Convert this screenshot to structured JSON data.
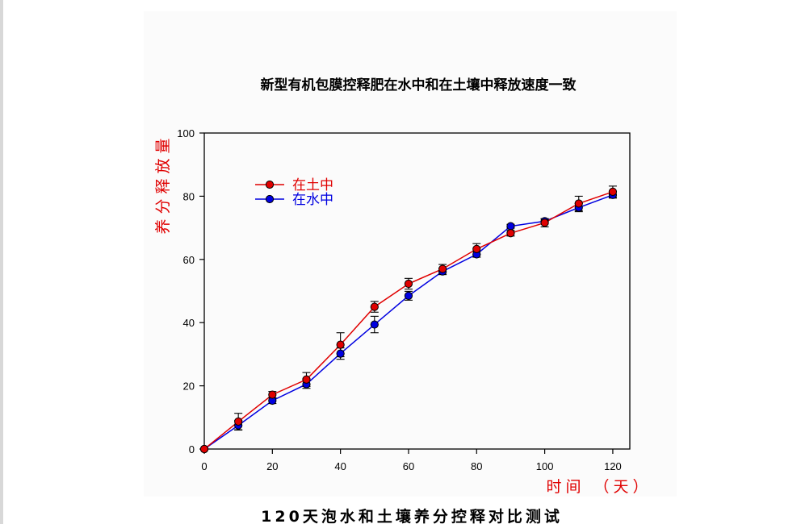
{
  "chart_data": {
    "type": "line",
    "title": "新型有机包膜控释肥在水中和在土壤中释放速度一致",
    "xlabel": "时间 （天）",
    "ylabel": "养分释放量",
    "xlim": [
      0,
      125
    ],
    "ylim": [
      0,
      100
    ],
    "xticks": [
      0,
      20,
      40,
      60,
      80,
      100,
      120
    ],
    "yticks": [
      0,
      20,
      40,
      60,
      80,
      100
    ],
    "grid": false,
    "legend_position": "top-left",
    "label_color": "#e00000",
    "x": [
      0,
      10,
      20,
      30,
      40,
      50,
      60,
      70,
      80,
      90,
      100,
      110,
      120
    ],
    "series": [
      {
        "name": "在土中",
        "color": "#e00000",
        "marker_color": "#e00000",
        "values": [
          0,
          8.7,
          17.2,
          22.0,
          33.0,
          45.0,
          52.3,
          57.0,
          63.3,
          68.3,
          71.6,
          77.7,
          81.4
        ],
        "error": [
          0,
          2.6,
          1.0,
          2.2,
          3.8,
          1.7,
          1.7,
          1.4,
          1.7,
          0.9,
          1.3,
          2.3,
          1.8
        ]
      },
      {
        "name": "在水中",
        "color": "#0000e0",
        "marker_color": "#0000e0",
        "values": [
          0,
          7.5,
          15.3,
          20.5,
          30.2,
          39.4,
          48.5,
          56.2,
          61.6,
          70.5,
          72.1,
          76.4,
          80.4
        ],
        "error": [
          0,
          1.5,
          0.9,
          1.3,
          1.8,
          2.6,
          1.4,
          1.0,
          0.9,
          0.6,
          0.7,
          1.3,
          1.0
        ]
      }
    ]
  },
  "caption": "120天泡水和土壤养分控释对比测试"
}
